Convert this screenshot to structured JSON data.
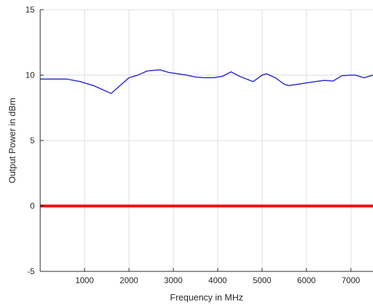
{
  "chart_data": {
    "type": "line",
    "title": "",
    "xlabel": "Frequency in MHz",
    "ylabel": "Output Power in dBm",
    "xlim": [
      0,
      7500
    ],
    "ylim": [
      -5,
      15
    ],
    "xticks": [
      1000,
      2000,
      3000,
      4000,
      5000,
      6000,
      7000
    ],
    "yticks": [
      -5,
      0,
      5,
      10,
      15
    ],
    "grid": true,
    "series": [
      {
        "color": "#2b2bd6",
        "x": [
          0,
          300,
          600,
          900,
          1200,
          1400,
          1600,
          1800,
          2000,
          2200,
          2400,
          2500,
          2700,
          2900,
          3100,
          3300,
          3500,
          3700,
          3900,
          4100,
          4300,
          4500,
          4800,
          5000,
          5100,
          5300,
          5500,
          5600,
          5800,
          6000,
          6200,
          6400,
          6600,
          6800,
          7000,
          7100,
          7300,
          7400,
          7500
        ],
        "y": [
          9.7,
          9.7,
          9.7,
          9.5,
          9.2,
          8.9,
          8.6,
          9.2,
          9.8,
          10.0,
          10.3,
          10.35,
          10.4,
          10.2,
          10.1,
          10.0,
          9.85,
          9.8,
          9.8,
          9.9,
          10.25,
          9.9,
          9.5,
          10.0,
          10.1,
          9.8,
          9.3,
          9.2,
          9.3,
          9.4,
          9.5,
          9.6,
          9.55,
          9.95,
          10.0,
          10.0,
          9.8,
          9.9,
          10.0
        ]
      },
      {
        "color": "#ff0000",
        "x": [
          0,
          7500
        ],
        "y": [
          0,
          0
        ]
      }
    ]
  }
}
